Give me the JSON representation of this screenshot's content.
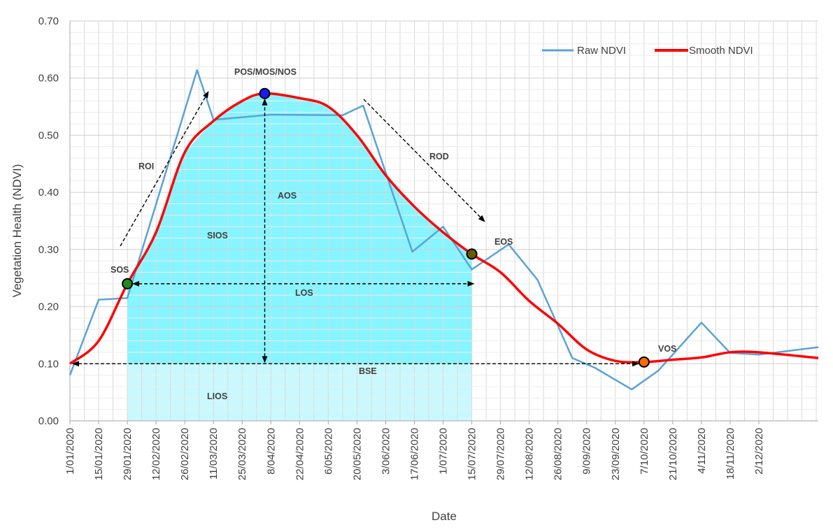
{
  "chart_data": {
    "type": "line",
    "title": "",
    "xlabel": "Date",
    "ylabel": "Vegetation Health (NDVI)",
    "x_axis": {
      "start": "1/01/2020",
      "end": "31/12/2020",
      "tick_labels": [
        "1/01/2020",
        "15/01/2020",
        "29/01/2020",
        "12/02/2020",
        "26/02/2020",
        "11/03/2020",
        "25/03/2020",
        "8/04/2020",
        "22/04/2020",
        "6/05/2020",
        "20/05/2020",
        "3/06/2020",
        "17/06/2020",
        "1/07/2020",
        "15/07/2020",
        "29/07/2020",
        "12/08/2020",
        "26/08/2020",
        "9/09/2020",
        "23/09/2020",
        "7/10/2020",
        "21/10/2020",
        "4/11/2020",
        "18/11/2020",
        "2/12/2020"
      ]
    },
    "ylim": [
      0,
      0.7
    ],
    "y_ticks": [
      "0.00",
      "0.10",
      "0.20",
      "0.30",
      "0.40",
      "0.50",
      "0.60",
      "0.70"
    ],
    "grid": true,
    "legend_position": "top-right",
    "series": [
      {
        "name": "Raw NDVI",
        "color": "#5ba3d6",
        "points": [
          {
            "x": "1/01/2020",
            "y": 0.08
          },
          {
            "x": "15/01/2020",
            "y": 0.212
          },
          {
            "x": "29/01/2020",
            "y": 0.215
          },
          {
            "x": "3/03/2020",
            "y": 0.614
          },
          {
            "x": "11/03/2020",
            "y": 0.527
          },
          {
            "x": "8/04/2020",
            "y": 0.536
          },
          {
            "x": "13/05/2020",
            "y": 0.535
          },
          {
            "x": "23/05/2020",
            "y": 0.552
          },
          {
            "x": "16/06/2020",
            "y": 0.296
          },
          {
            "x": "1/07/2020",
            "y": 0.34
          },
          {
            "x": "15/07/2020",
            "y": 0.265
          },
          {
            "x": "2/08/2020",
            "y": 0.309
          },
          {
            "x": "16/08/2020",
            "y": 0.247
          },
          {
            "x": "2/09/2020",
            "y": 0.11
          },
          {
            "x": "13/09/2020",
            "y": 0.093
          },
          {
            "x": "1/10/2020",
            "y": 0.055
          },
          {
            "x": "14/10/2020",
            "y": 0.088
          },
          {
            "x": "4/11/2020",
            "y": 0.172
          },
          {
            "x": "18/11/2020",
            "y": 0.119
          },
          {
            "x": "2/12/2020",
            "y": 0.116
          },
          {
            "x": "31/12/2020",
            "y": 0.129
          }
        ]
      },
      {
        "name": "Smooth NDVI",
        "color": "#ff0000",
        "points": [
          {
            "x": "1/01/2020",
            "y": 0.1
          },
          {
            "x": "15/01/2020",
            "y": 0.14
          },
          {
            "x": "29/01/2020",
            "y": 0.24
          },
          {
            "x": "12/02/2020",
            "y": 0.33
          },
          {
            "x": "26/02/2020",
            "y": 0.47
          },
          {
            "x": "11/03/2020",
            "y": 0.525
          },
          {
            "x": "25/03/2020",
            "y": 0.56
          },
          {
            "x": "5/04/2020",
            "y": 0.573
          },
          {
            "x": "22/04/2020",
            "y": 0.565
          },
          {
            "x": "6/05/2020",
            "y": 0.55
          },
          {
            "x": "20/05/2020",
            "y": 0.5
          },
          {
            "x": "3/06/2020",
            "y": 0.43
          },
          {
            "x": "17/06/2020",
            "y": 0.375
          },
          {
            "x": "1/07/2020",
            "y": 0.33
          },
          {
            "x": "15/07/2020",
            "y": 0.292
          },
          {
            "x": "29/07/2020",
            "y": 0.26
          },
          {
            "x": "12/08/2020",
            "y": 0.21
          },
          {
            "x": "26/08/2020",
            "y": 0.17
          },
          {
            "x": "9/09/2020",
            "y": 0.125
          },
          {
            "x": "23/09/2020",
            "y": 0.105
          },
          {
            "x": "7/10/2020",
            "y": 0.103
          },
          {
            "x": "21/10/2020",
            "y": 0.107
          },
          {
            "x": "4/11/2020",
            "y": 0.111
          },
          {
            "x": "18/11/2020",
            "y": 0.12
          },
          {
            "x": "2/12/2020",
            "y": 0.12
          },
          {
            "x": "31/12/2020",
            "y": 0.11
          }
        ]
      }
    ],
    "markers": [
      {
        "label": "SOS",
        "x": "29/01/2020",
        "y": 0.24,
        "color": "#1f8a1f"
      },
      {
        "label": "POS/MOS/NOS",
        "x": "5/04/2020",
        "y": 0.573,
        "color": "#1a1aff"
      },
      {
        "label": "EOS",
        "x": "15/07/2020",
        "y": 0.292,
        "color": "#6b5a00"
      },
      {
        "label": "VOS",
        "x": "7/10/2020",
        "y": 0.103,
        "color": "#ff6a00"
      }
    ],
    "annotations": {
      "ROI": "ROI",
      "ROD": "ROD",
      "AOS": "AOS",
      "SIOS": "SIOS",
      "LOS": "LOS",
      "BSE": "BSE",
      "LIOS": "LIOS"
    },
    "colors": {
      "sios_fill": "#5ef2ff",
      "lios_fill": "#c9f9ff",
      "grid": "#d9d9d9",
      "axis": "#a6a6a6",
      "arrow": "#000000"
    }
  }
}
